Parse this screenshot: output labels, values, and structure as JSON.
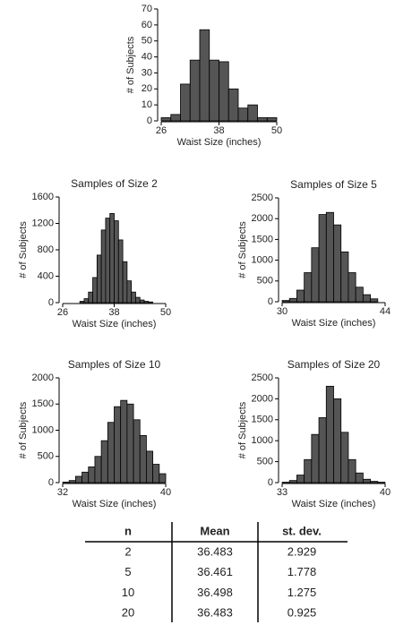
{
  "chart_data": [
    {
      "type": "histogram",
      "x_label": "Waist Size (inches)",
      "y_label": "# of Subjects",
      "color": "#555555",
      "bins": [
        26,
        28,
        30,
        32,
        34,
        36,
        38,
        40,
        42,
        44,
        46,
        48,
        50
      ],
      "values": [
        2,
        4,
        23,
        38,
        57,
        38,
        37,
        20,
        8,
        10,
        2,
        2
      ],
      "xlim": [
        26,
        50
      ],
      "xticks": [
        26,
        38,
        50
      ],
      "ylim": [
        0,
        70
      ],
      "yticks": [
        0,
        10,
        20,
        30,
        40,
        50,
        60,
        70
      ]
    },
    {
      "type": "histogram",
      "title": "Samples of Size 2",
      "x_label": "Waist Size (inches)",
      "y_label": "# of Subjects",
      "color": "#555555",
      "bins": [
        30,
        31,
        32,
        33,
        34,
        35,
        36,
        37,
        38,
        39,
        40,
        41,
        42,
        43,
        44,
        45,
        46,
        47
      ],
      "values": [
        20,
        60,
        160,
        380,
        720,
        1100,
        1280,
        1350,
        1240,
        950,
        620,
        330,
        160,
        80,
        40,
        20,
        10
      ],
      "xlim": [
        26,
        50
      ],
      "xticks": [
        26,
        38,
        50
      ],
      "ylim": [
        0,
        1600
      ],
      "yticks": [
        0,
        400,
        800,
        1200,
        1600
      ]
    },
    {
      "type": "histogram",
      "title": "Samples of Size 5",
      "x_label": "Waist Size (inches)",
      "y_label": "# of Subjects",
      "color": "#555555",
      "bins": [
        30,
        31,
        32,
        33,
        34,
        35,
        36,
        37,
        38,
        39,
        40,
        41,
        42,
        43
      ],
      "values": [
        30,
        80,
        280,
        700,
        1300,
        2100,
        2150,
        1850,
        1200,
        700,
        350,
        170,
        70
      ],
      "xlim": [
        30,
        44
      ],
      "xticks": [
        30,
        44
      ],
      "ylim": [
        0,
        2500
      ],
      "yticks": [
        0,
        500,
        1000,
        1500,
        2000,
        2500
      ]
    },
    {
      "type": "histogram",
      "title": "Samples of Size 10",
      "x_label": "Waist Size (inches)",
      "y_label": "# of Subjects",
      "color": "#555555",
      "bins": [
        32,
        32.5,
        33,
        33.5,
        34,
        34.5,
        35,
        35.5,
        36,
        36.5,
        37,
        37.5,
        38,
        38.5,
        39,
        39.5,
        40
      ],
      "values": [
        10,
        40,
        120,
        200,
        300,
        500,
        800,
        1150,
        1450,
        1570,
        1500,
        1200,
        900,
        600,
        350,
        170
      ],
      "xlim": [
        32,
        40
      ],
      "xticks": [
        32,
        40
      ],
      "ylim": [
        0,
        2000
      ],
      "yticks": [
        0,
        500,
        1000,
        1500,
        2000
      ]
    },
    {
      "type": "histogram",
      "title": "Samples of Size 20",
      "x_label": "Waist Size (inches)",
      "y_label": "# of Subjects",
      "color": "#555555",
      "bins": [
        33,
        33.5,
        34,
        34.5,
        35,
        35.5,
        36,
        36.5,
        37,
        37.5,
        38,
        38.5,
        39,
        39.5,
        40
      ],
      "values": [
        10,
        50,
        180,
        550,
        1150,
        1550,
        2300,
        2000,
        1200,
        550,
        230,
        80,
        30,
        10
      ],
      "xlim": [
        33,
        40
      ],
      "xticks": [
        33,
        40
      ],
      "ylim": [
        0,
        2500
      ],
      "yticks": [
        0,
        500,
        1000,
        1500,
        2000,
        2500
      ]
    }
  ],
  "table": {
    "header": [
      "n",
      "Mean",
      "st. dev."
    ],
    "rows": [
      [
        2,
        36.483,
        2.929
      ],
      [
        5,
        36.461,
        1.778
      ],
      [
        10,
        36.498,
        1.275
      ],
      [
        20,
        36.483,
        0.925
      ]
    ]
  }
}
